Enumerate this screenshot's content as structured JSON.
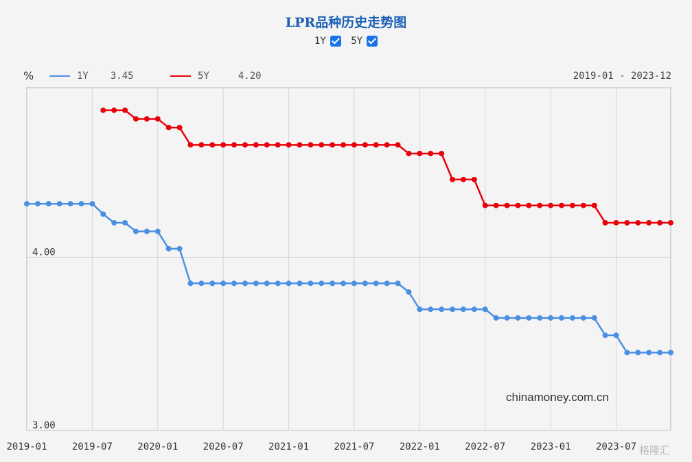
{
  "title": "LPR品种历史走势图",
  "toggles": [
    {
      "label": "1Y",
      "checked": true
    },
    {
      "label": "5Y",
      "checked": true
    }
  ],
  "unit": "%",
  "legend": [
    {
      "name": "1Y",
      "value": "3.45",
      "color": "#4a90e2"
    },
    {
      "name": "5Y",
      "value": "4.20",
      "color": "#e8000b"
    }
  ],
  "date_range": "2019-01 - 2023-12",
  "source": "chinamoney.com.cn",
  "watermark": "格隆汇",
  "chart_data": {
    "type": "line",
    "x_ticks": [
      "2019-01",
      "2019-07",
      "2020-01",
      "2020-07",
      "2021-01",
      "2021-07",
      "2022-01",
      "2022-07",
      "2023-01",
      "2023-07"
    ],
    "y_ticks": [
      {
        "value": 4.0,
        "label": "4.00"
      },
      {
        "value": 3.0,
        "label": "3.00"
      }
    ],
    "ylim": [
      3.0,
      4.98
    ],
    "xlim": [
      "2019-01",
      "2023-12"
    ],
    "grid": true,
    "series": [
      {
        "name": "1Y",
        "color": "#4a90e2",
        "start": "2019-01",
        "values": [
          4.31,
          4.31,
          4.31,
          4.31,
          4.31,
          4.31,
          4.31,
          4.25,
          4.2,
          4.2,
          4.15,
          4.15,
          4.15,
          4.05,
          4.05,
          3.85,
          3.85,
          3.85,
          3.85,
          3.85,
          3.85,
          3.85,
          3.85,
          3.85,
          3.85,
          3.85,
          3.85,
          3.85,
          3.85,
          3.85,
          3.85,
          3.85,
          3.85,
          3.85,
          3.85,
          3.8,
          3.7,
          3.7,
          3.7,
          3.7,
          3.7,
          3.7,
          3.7,
          3.65,
          3.65,
          3.65,
          3.65,
          3.65,
          3.65,
          3.65,
          3.65,
          3.65,
          3.65,
          3.55,
          3.55,
          3.45,
          3.45,
          3.45,
          3.45,
          3.45
        ]
      },
      {
        "name": "5Y",
        "color": "#e8000b",
        "start": "2019-08",
        "values": [
          4.85,
          4.85,
          4.85,
          4.8,
          4.8,
          4.8,
          4.75,
          4.75,
          4.65,
          4.65,
          4.65,
          4.65,
          4.65,
          4.65,
          4.65,
          4.65,
          4.65,
          4.65,
          4.65,
          4.65,
          4.65,
          4.65,
          4.65,
          4.65,
          4.65,
          4.65,
          4.65,
          4.65,
          4.6,
          4.6,
          4.6,
          4.6,
          4.45,
          4.45,
          4.45,
          4.3,
          4.3,
          4.3,
          4.3,
          4.3,
          4.3,
          4.3,
          4.3,
          4.3,
          4.3,
          4.3,
          4.2,
          4.2,
          4.2,
          4.2,
          4.2,
          4.2,
          4.2
        ]
      }
    ]
  }
}
